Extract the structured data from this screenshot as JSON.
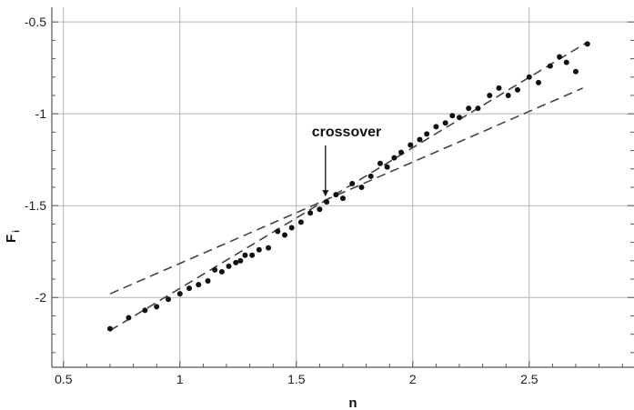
{
  "chart_data": {
    "type": "scatter",
    "xlabel": "n",
    "ylabel": "F",
    "ylabel_subscript": "i",
    "xlim": [
      0.45,
      2.95
    ],
    "ylim": [
      -2.38,
      -0.42
    ],
    "xticks": [
      0.5,
      1,
      1.5,
      2,
      2.5
    ],
    "xtick_labels": [
      "0.5",
      "1",
      "1.5",
      "2",
      "2.5"
    ],
    "yticks": [
      -0.5,
      -1,
      -1.5,
      -2
    ],
    "ytick_labels": [
      "-0.5",
      "-1",
      "-1.5",
      "-2"
    ],
    "grid": true,
    "annotation": {
      "text": "crossover",
      "x": 1.625,
      "y": -1.48
    },
    "series": [
      {
        "values": [
          [
            0.7,
            -2.17
          ],
          [
            0.78,
            -2.11
          ],
          [
            0.85,
            -2.07
          ],
          [
            0.9,
            -2.05
          ],
          [
            0.95,
            -2.01
          ],
          [
            1.0,
            -1.98
          ],
          [
            1.04,
            -1.95
          ],
          [
            1.08,
            -1.93
          ],
          [
            1.12,
            -1.91
          ],
          [
            1.15,
            -1.85
          ],
          [
            1.18,
            -1.86
          ],
          [
            1.21,
            -1.83
          ],
          [
            1.24,
            -1.81
          ],
          [
            1.26,
            -1.8
          ],
          [
            1.28,
            -1.77
          ],
          [
            1.31,
            -1.77
          ],
          [
            1.34,
            -1.74
          ],
          [
            1.38,
            -1.73
          ],
          [
            1.42,
            -1.64
          ],
          [
            1.45,
            -1.66
          ],
          [
            1.48,
            -1.62
          ],
          [
            1.52,
            -1.59
          ],
          [
            1.56,
            -1.54
          ],
          [
            1.6,
            -1.52
          ],
          [
            1.63,
            -1.48
          ],
          [
            1.67,
            -1.44
          ],
          [
            1.7,
            -1.46
          ],
          [
            1.74,
            -1.38
          ],
          [
            1.78,
            -1.4
          ],
          [
            1.82,
            -1.34
          ],
          [
            1.86,
            -1.27
          ],
          [
            1.89,
            -1.29
          ],
          [
            1.92,
            -1.24
          ],
          [
            1.95,
            -1.21
          ],
          [
            1.99,
            -1.17
          ],
          [
            2.03,
            -1.14
          ],
          [
            2.06,
            -1.11
          ],
          [
            2.1,
            -1.07
          ],
          [
            2.14,
            -1.05
          ],
          [
            2.17,
            -1.01
          ],
          [
            2.2,
            -1.02
          ],
          [
            2.24,
            -0.97
          ],
          [
            2.28,
            -0.97
          ],
          [
            2.33,
            -0.9
          ],
          [
            2.37,
            -0.86
          ],
          [
            2.41,
            -0.9
          ],
          [
            2.45,
            -0.87
          ],
          [
            2.5,
            -0.8
          ],
          [
            2.54,
            -0.83
          ],
          [
            2.59,
            -0.74
          ],
          [
            2.63,
            -0.69
          ],
          [
            2.66,
            -0.72
          ],
          [
            2.7,
            -0.77
          ],
          [
            2.75,
            -0.62
          ]
        ]
      }
    ],
    "fit_lines": [
      {
        "x": [
          0.7,
          2.75
        ],
        "y": [
          -2.18,
          -0.61
        ]
      },
      {
        "x": [
          0.7,
          2.73
        ],
        "y": [
          -1.98,
          -0.86
        ]
      }
    ],
    "colors": {
      "points": "#111111",
      "fit_lines": "#444444",
      "grid": "#b5b5b5",
      "axes": "#555555"
    }
  }
}
